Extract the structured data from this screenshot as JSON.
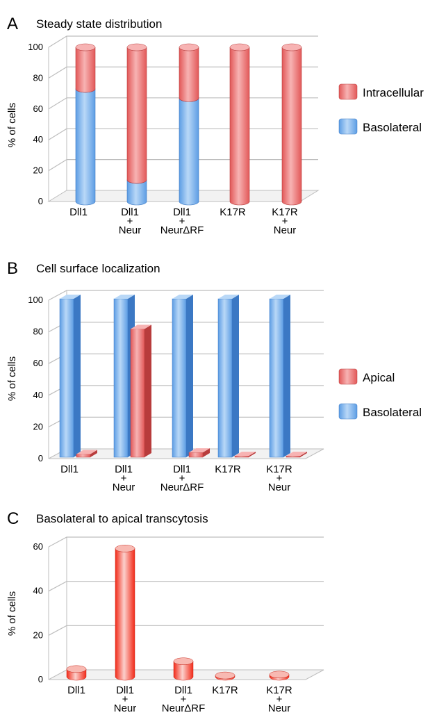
{
  "colors": {
    "red_light": "#f7b3b3",
    "red": "#e25858",
    "red_dark": "#b83c3c",
    "red_bright": "#f22a18",
    "blue_light": "#b9d8f7",
    "blue": "#5d9de4",
    "blue_dark": "#3b78c4",
    "grid": "#bdbdbd"
  },
  "chart_data": [
    {
      "panel": "A",
      "title": "Steady state distribution",
      "type": "bar",
      "stacked": true,
      "ylabel": "% of cells",
      "ylim": [
        0,
        100
      ],
      "yticks": [
        0,
        20,
        40,
        60,
        80,
        100
      ],
      "categories": [
        [
          "Dll1"
        ],
        [
          "Dll1",
          "+",
          "Neur"
        ],
        [
          "Dll1",
          "+",
          "NeurΔRF"
        ],
        [
          "K17R"
        ],
        [
          "K17R",
          "+",
          "Neur"
        ]
      ],
      "series": [
        {
          "name": "Basolateral",
          "color": "blue",
          "values": [
            73,
            14,
            67,
            0,
            0
          ]
        },
        {
          "name": "Intracellular",
          "color": "red",
          "values": [
            27,
            86,
            33,
            100,
            100
          ]
        }
      ],
      "legend": [
        {
          "label": "Intracellular",
          "color": "red"
        },
        {
          "label": "Basolateral",
          "color": "blue"
        }
      ]
    },
    {
      "panel": "B",
      "title": "Cell surface localization",
      "type": "bar",
      "stacked": false,
      "ylabel": "% of cells",
      "ylim": [
        0,
        100
      ],
      "yticks": [
        0,
        20,
        40,
        60,
        80,
        100
      ],
      "categories": [
        [
          "Dll1"
        ],
        [
          "Dll1",
          "+",
          "Neur"
        ],
        [
          "Dll1",
          "+",
          "NeurΔRF"
        ],
        [
          "K17R"
        ],
        [
          "K17R",
          "+",
          "Neur"
        ]
      ],
      "series": [
        {
          "name": "Basolateral",
          "color": "blue",
          "values": [
            100,
            100,
            100,
            100,
            100
          ]
        },
        {
          "name": "Apical",
          "color": "red",
          "values": [
            2,
            81,
            3,
            0.5,
            0
          ]
        }
      ],
      "legend": [
        {
          "label": "Apical",
          "color": "red"
        },
        {
          "label": "Basolateral",
          "color": "blue"
        }
      ]
    },
    {
      "panel": "C",
      "title": "Basolateral to apical transcytosis",
      "type": "bar",
      "stacked": false,
      "ylabel": "% of cells",
      "ylim": [
        0,
        60
      ],
      "yticks": [
        0,
        20,
        40,
        60
      ],
      "categories": [
        [
          "Dll1"
        ],
        [
          "Dll1",
          "+",
          "Neur"
        ],
        [
          "Dll1",
          "+",
          "NeurΔRF"
        ],
        [
          "K17R"
        ],
        [
          "K17R",
          "+",
          "Neur"
        ]
      ],
      "series": [
        {
          "name": "Transcytosis",
          "color": "red_bright",
          "values": [
            3.5,
            58,
            7,
            0.5,
            1
          ]
        }
      ],
      "legend": []
    }
  ]
}
